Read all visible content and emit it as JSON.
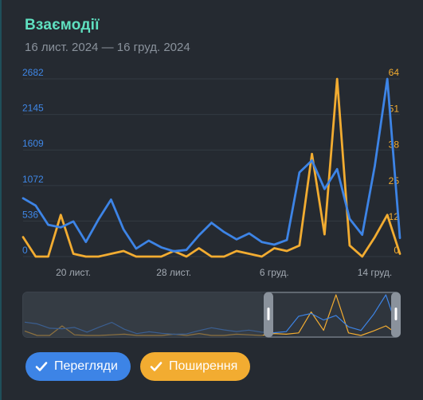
{
  "header": {
    "title": "Взаємодії",
    "subtitle": "16 лист. 2024 — 16 груд. 2024"
  },
  "legend": {
    "views_label": "Перегляди",
    "shares_label": "Поширення"
  },
  "colors": {
    "views": "#3d84e6",
    "shares": "#f2ac31",
    "background": "#252a31",
    "title": "#5fe0c0"
  },
  "icons": [
    "check-icon",
    "grip-icon"
  ],
  "chart_data": {
    "type": "line",
    "x": [
      "16 лист.",
      "17 лист.",
      "18 лист.",
      "19 лист.",
      "20 лист.",
      "21 лист.",
      "22 лист.",
      "23 лист.",
      "24 лист.",
      "25 лист.",
      "26 лист.",
      "27 лист.",
      "28 лист.",
      "29 лист.",
      "30 лист.",
      "1 груд.",
      "2 груд.",
      "3 груд.",
      "4 груд.",
      "5 груд.",
      "6 груд.",
      "7 груд.",
      "8 груд.",
      "9 груд.",
      "10 груд.",
      "11 груд.",
      "12 груд.",
      "13 груд.",
      "14 груд.",
      "15 груд.",
      "16 груд."
    ],
    "x_ticks": [
      "20 лист.",
      "28 лист.",
      "6 груд.",
      "14 груд."
    ],
    "series": [
      {
        "name": "Перегляди",
        "axis": "left",
        "values": [
          880,
          770,
          480,
          440,
          530,
          220,
          560,
          860,
          410,
          120,
          240,
          140,
          80,
          100,
          320,
          510,
          370,
          260,
          350,
          220,
          180,
          250,
          1270,
          1450,
          1020,
          1320,
          570,
          330,
          1370,
          2682,
          280
        ]
      },
      {
        "name": "Поширення",
        "axis": "right",
        "values": [
          7,
          0,
          0,
          15,
          1,
          0,
          0,
          1,
          2,
          0,
          0,
          0,
          2,
          0,
          3,
          0,
          0,
          2,
          1,
          0,
          3,
          2,
          4,
          37,
          8,
          64,
          4,
          0,
          7,
          15,
          1
        ]
      }
    ],
    "y_left": {
      "ticks": [
        0,
        536,
        1072,
        1609,
        2145,
        2682
      ],
      "range": [
        0,
        2682
      ]
    },
    "y_right": {
      "ticks": [
        0,
        12,
        25,
        38,
        51,
        64
      ],
      "range": [
        0,
        64
      ]
    },
    "grid": true,
    "navigator": true
  }
}
